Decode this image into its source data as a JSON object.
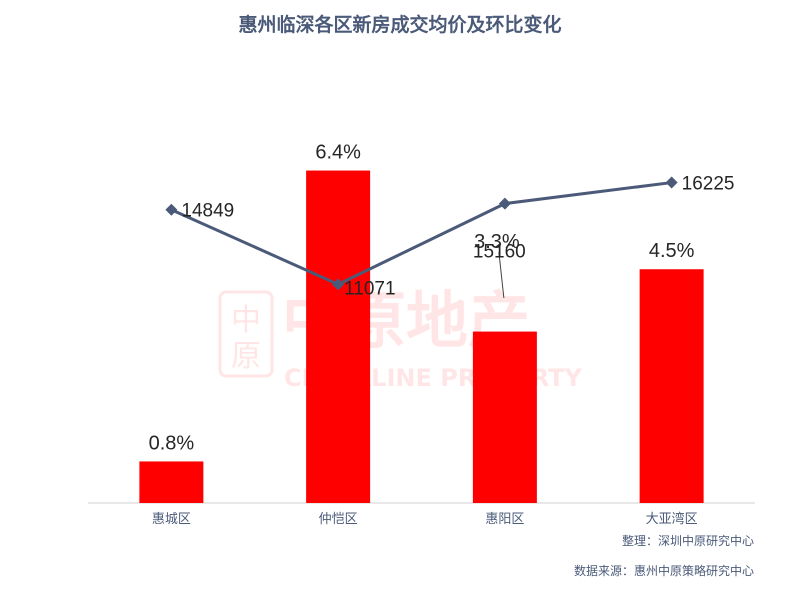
{
  "title": "惠州临深各区新房成交均价及环比变化",
  "footer": {
    "organizer": "整理：深圳中原研究中心",
    "source": "数据来源：惠州中原策略研究中心"
  },
  "watermark": {
    "cn": "中原地产",
    "en": "CENTALINE PROPERTY",
    "seal": "中原"
  },
  "chart_data": {
    "type": "bar",
    "categories": [
      "惠城区",
      "仲恺区",
      "惠阳区",
      "大亚湾区"
    ],
    "series": [
      {
        "type": "bar",
        "values": [
          0.8,
          6.4,
          3.3,
          4.5
        ],
        "labels": [
          "0.8%",
          "6.4%",
          "3.3%",
          "4.5%"
        ],
        "color": "#ff0000"
      },
      {
        "type": "line",
        "values": [
          14849,
          11071,
          15160,
          16225
        ],
        "labels": [
          "14849",
          "11071",
          "15160",
          "16225"
        ],
        "color": "#4a5a78"
      }
    ],
    "legend": "none",
    "grid": false
  }
}
